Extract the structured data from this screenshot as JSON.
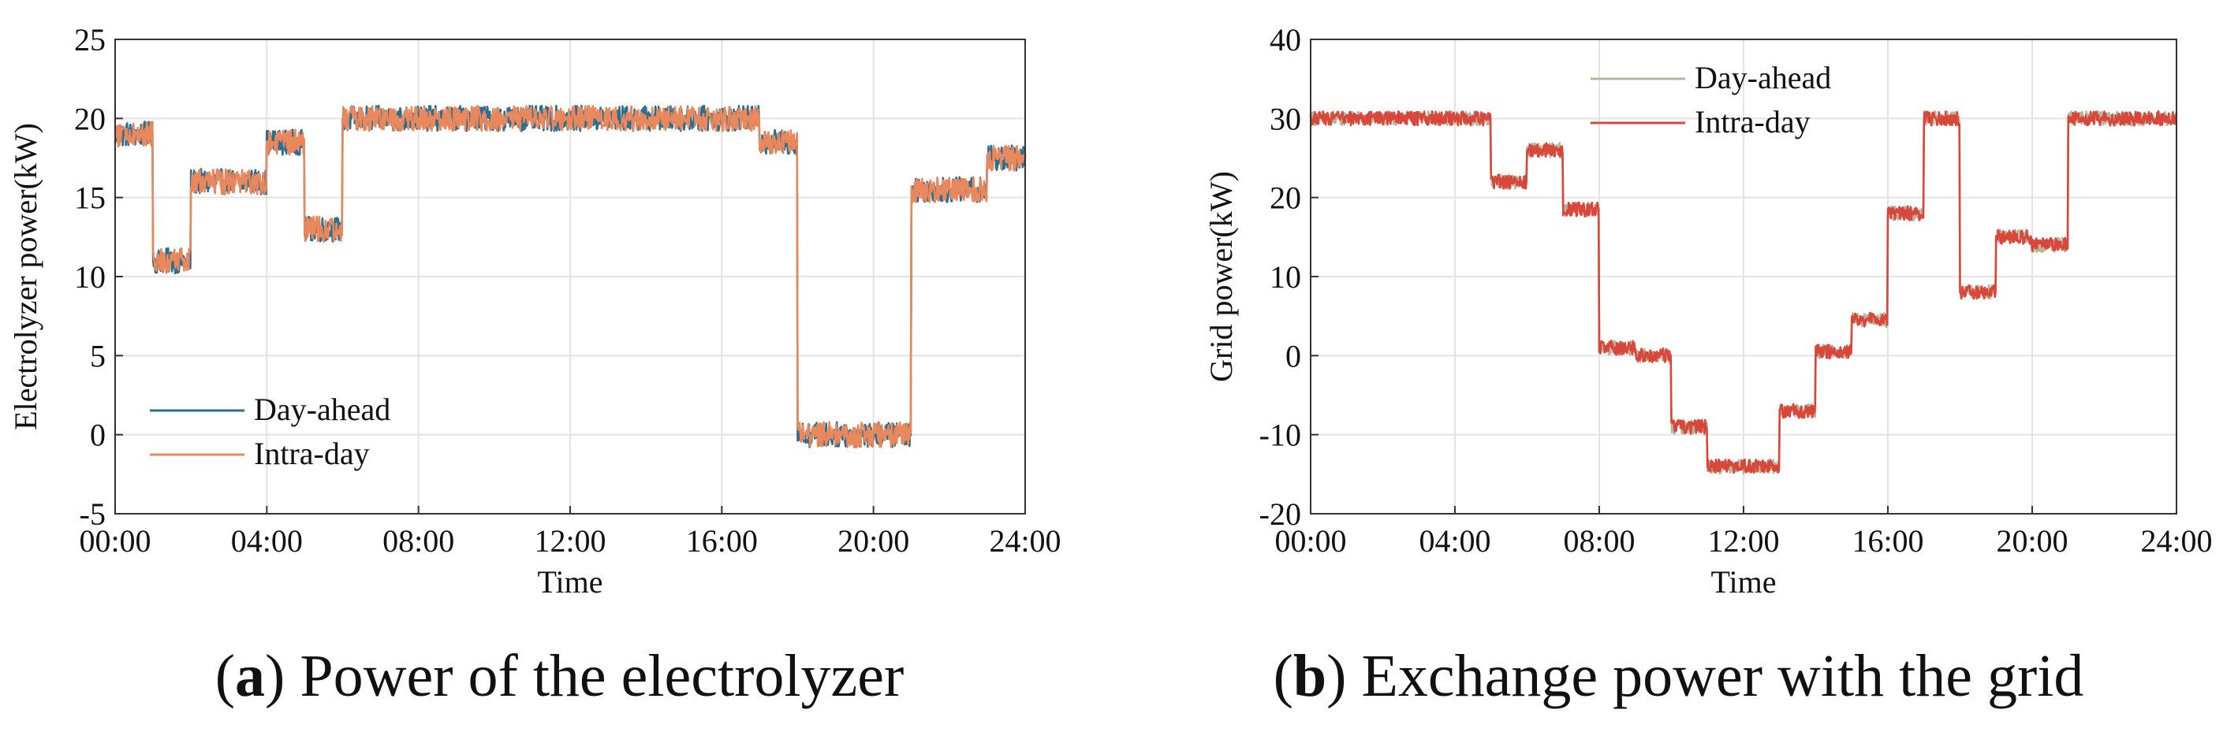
{
  "chart_data": [
    {
      "type": "line",
      "panel_label": "a",
      "caption": "Power of the electrolyzer",
      "xlabel": "Time",
      "ylabel": "Electrolyzer power(kW)",
      "x_ticks": [
        "00:00",
        "04:00",
        "08:00",
        "12:00",
        "16:00",
        "20:00",
        "24:00"
      ],
      "y_ticks": [
        "-5",
        "0",
        "5",
        "10",
        "15",
        "20",
        "25"
      ],
      "xlim_hours": [
        0,
        24
      ],
      "ylim": [
        -5,
        25
      ],
      "grid": true,
      "legend_position": "bottom-left",
      "noise_amplitude": 0.8,
      "series": [
        {
          "name": "Day-ahead",
          "color": "#2e6e8e",
          "segments": [
            {
              "start": 0,
              "end": 1,
              "value": 19
            },
            {
              "start": 1,
              "end": 2,
              "value": 11
            },
            {
              "start": 2,
              "end": 4,
              "value": 16
            },
            {
              "start": 4,
              "end": 5,
              "value": 18.5
            },
            {
              "start": 5,
              "end": 6,
              "value": 13
            },
            {
              "start": 6,
              "end": 17,
              "value": 20
            },
            {
              "start": 17,
              "end": 18,
              "value": 18.5
            },
            {
              "start": 18,
              "end": 21,
              "value": 0
            },
            {
              "start": 21,
              "end": 23,
              "value": 15.5
            },
            {
              "start": 23,
              "end": 24,
              "value": 17.5
            }
          ]
        },
        {
          "name": "Intra-day",
          "color": "#e8885c",
          "segments": [
            {
              "start": 0,
              "end": 1,
              "value": 19
            },
            {
              "start": 1,
              "end": 2,
              "value": 11
            },
            {
              "start": 2,
              "end": 4,
              "value": 16
            },
            {
              "start": 4,
              "end": 5,
              "value": 18.5
            },
            {
              "start": 5,
              "end": 6,
              "value": 13
            },
            {
              "start": 6,
              "end": 17,
              "value": 20
            },
            {
              "start": 17,
              "end": 18,
              "value": 18.5
            },
            {
              "start": 18,
              "end": 21,
              "value": 0
            },
            {
              "start": 21,
              "end": 23,
              "value": 15.5
            },
            {
              "start": 23,
              "end": 24,
              "value": 17.5
            }
          ]
        }
      ]
    },
    {
      "type": "line",
      "panel_label": "b",
      "caption": "Exchange power with the grid",
      "xlabel": "Time",
      "ylabel": "Grid power(kW)",
      "x_ticks": [
        "00:00",
        "04:00",
        "08:00",
        "12:00",
        "16:00",
        "20:00",
        "24:00"
      ],
      "y_ticks": [
        "-20",
        "-10",
        "0",
        "10",
        "20",
        "30",
        "40"
      ],
      "xlim_hours": [
        0,
        24
      ],
      "ylim": [
        -20,
        40
      ],
      "grid": true,
      "legend_position": "top-center",
      "noise_amplitude": 0.9,
      "series": [
        {
          "name": "Day-ahead",
          "color": "#b8b49e",
          "segments": [
            {
              "start": 0,
              "end": 5,
              "value": 30
            },
            {
              "start": 5,
              "end": 6,
              "value": 22
            },
            {
              "start": 6,
              "end": 7,
              "value": 26
            },
            {
              "start": 7,
              "end": 8,
              "value": 18.5
            },
            {
              "start": 8,
              "end": 9,
              "value": 1
            },
            {
              "start": 9,
              "end": 10,
              "value": 0
            },
            {
              "start": 10,
              "end": 11,
              "value": -9
            },
            {
              "start": 11,
              "end": 13,
              "value": -14
            },
            {
              "start": 13,
              "end": 14,
              "value": -7
            },
            {
              "start": 14,
              "end": 15,
              "value": 0.5
            },
            {
              "start": 15,
              "end": 16,
              "value": 4.5
            },
            {
              "start": 16,
              "end": 17,
              "value": 18
            },
            {
              "start": 17,
              "end": 18,
              "value": 30
            },
            {
              "start": 18,
              "end": 19,
              "value": 8
            },
            {
              "start": 19,
              "end": 20,
              "value": 15
            },
            {
              "start": 20,
              "end": 21,
              "value": 14
            },
            {
              "start": 21,
              "end": 24,
              "value": 30
            }
          ]
        },
        {
          "name": "Intra-day",
          "color": "#d9473a",
          "segments": [
            {
              "start": 0,
              "end": 5,
              "value": 30
            },
            {
              "start": 5,
              "end": 6,
              "value": 22
            },
            {
              "start": 6,
              "end": 7,
              "value": 26
            },
            {
              "start": 7,
              "end": 8,
              "value": 18.5
            },
            {
              "start": 8,
              "end": 9,
              "value": 1
            },
            {
              "start": 9,
              "end": 10,
              "value": 0
            },
            {
              "start": 10,
              "end": 11,
              "value": -9
            },
            {
              "start": 11,
              "end": 13,
              "value": -14
            },
            {
              "start": 13,
              "end": 14,
              "value": -7
            },
            {
              "start": 14,
              "end": 15,
              "value": 0.5
            },
            {
              "start": 15,
              "end": 16,
              "value": 4.5
            },
            {
              "start": 16,
              "end": 17,
              "value": 18
            },
            {
              "start": 17,
              "end": 18,
              "value": 30
            },
            {
              "start": 18,
              "end": 19,
              "value": 8
            },
            {
              "start": 19,
              "end": 20,
              "value": 15
            },
            {
              "start": 20,
              "end": 21,
              "value": 14
            },
            {
              "start": 21,
              "end": 24,
              "value": 30
            }
          ]
        }
      ]
    }
  ]
}
